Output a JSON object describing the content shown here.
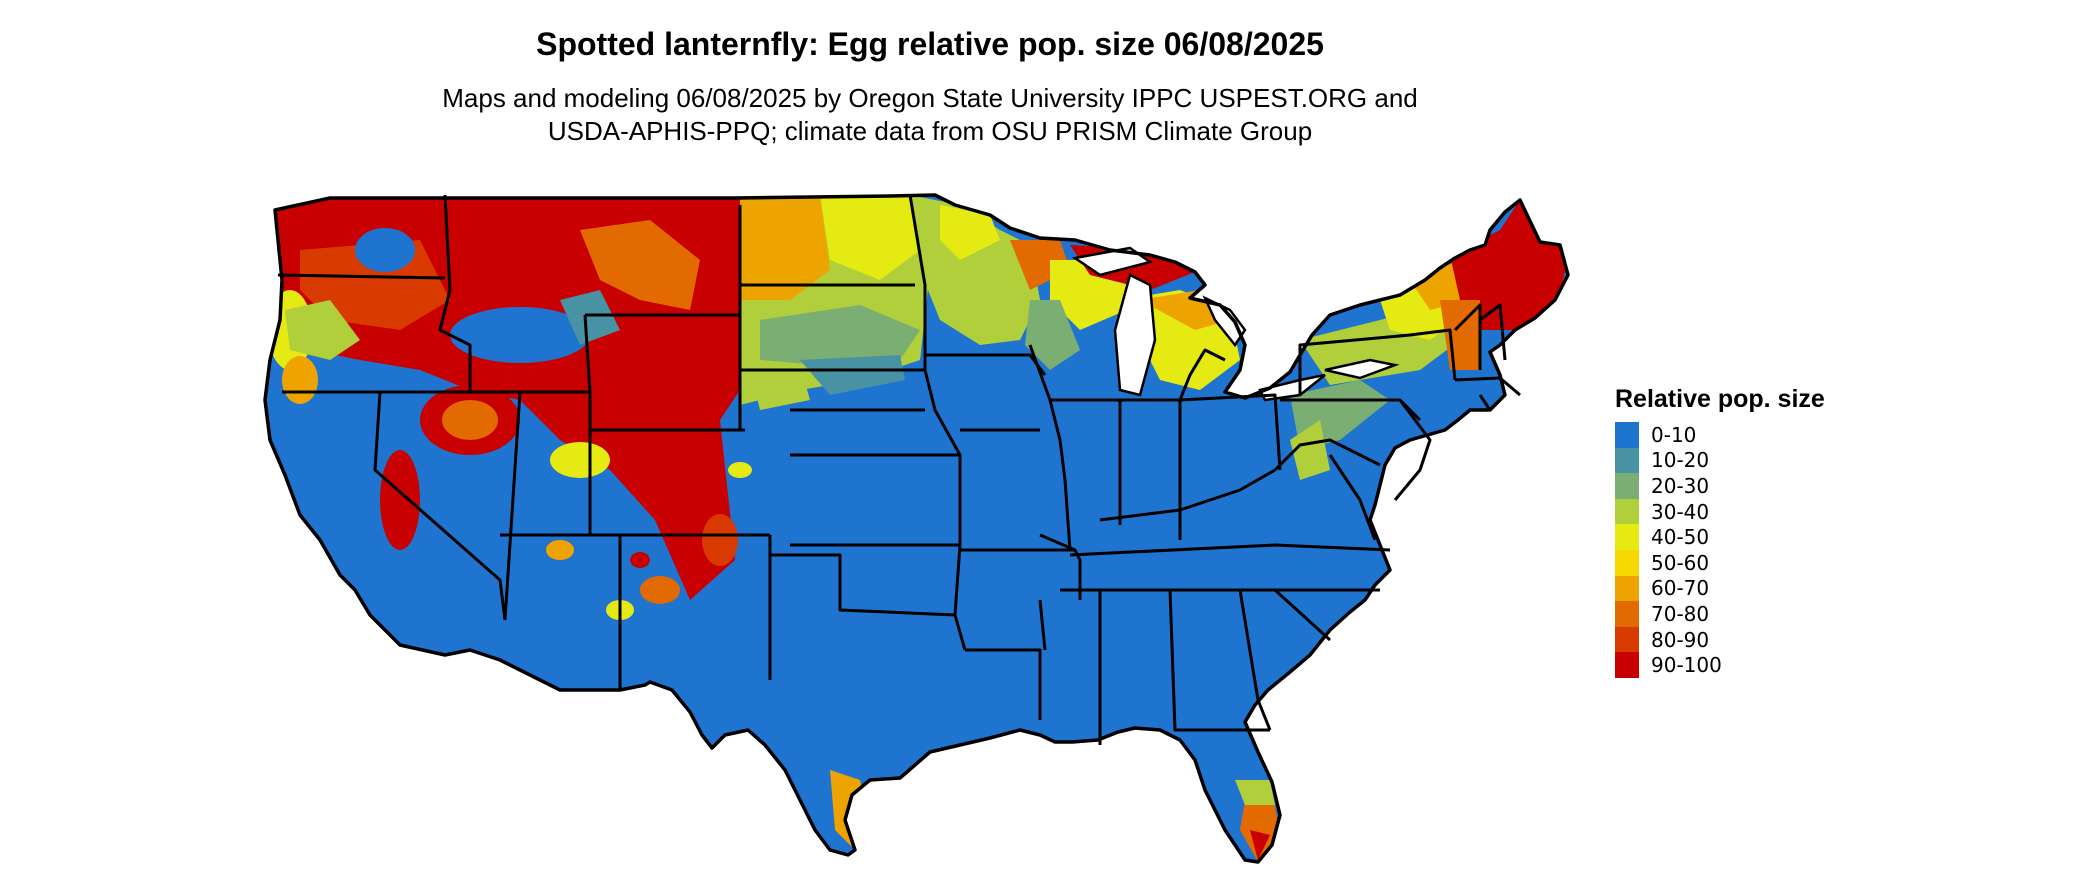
{
  "title": "Spotted lanternfly: Egg relative pop. size 06/08/2025",
  "subtitle_lines": [
    "Maps and modeling 06/08/2025 by Oregon State University IPPC USPEST.ORG and",
    "USDA-APHIS-PPQ; climate data from OSU PRISM Climate Group"
  ],
  "legend": {
    "title": "Relative pop. size",
    "items": [
      {
        "label": "0-10",
        "color": "#1f74d0"
      },
      {
        "label": "10-20",
        "color": "#4893a3"
      },
      {
        "label": "20-30",
        "color": "#7bae72"
      },
      {
        "label": "30-40",
        "color": "#b0cf3a"
      },
      {
        "label": "40-50",
        "color": "#e4ea12"
      },
      {
        "label": "50-60",
        "color": "#f7d800"
      },
      {
        "label": "60-70",
        "color": "#eea400"
      },
      {
        "label": "70-80",
        "color": "#e36a00"
      },
      {
        "label": "80-90",
        "color": "#d83a00"
      },
      {
        "label": "90-100",
        "color": "#c80000"
      }
    ]
  }
}
